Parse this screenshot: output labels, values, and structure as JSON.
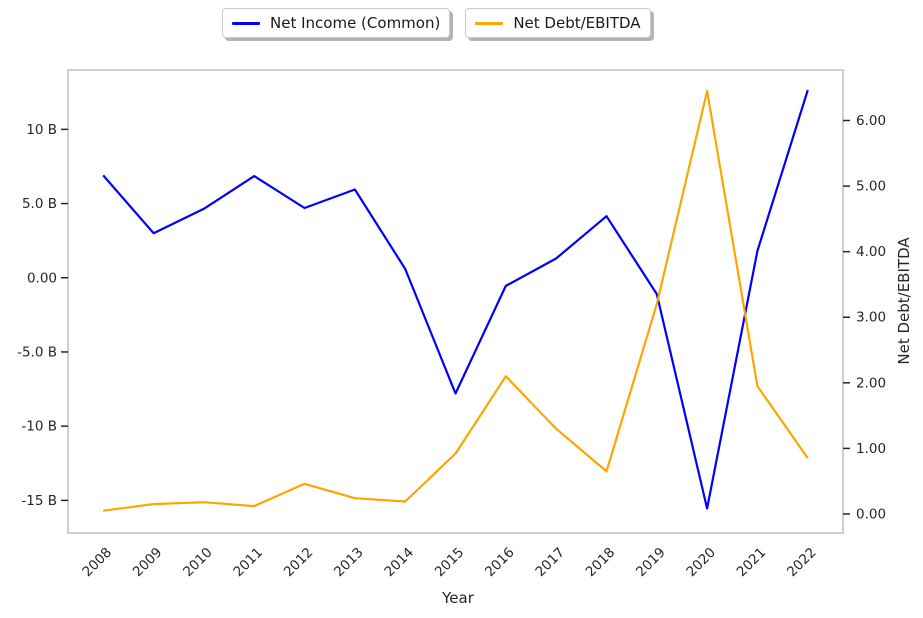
{
  "chart_data": {
    "type": "line",
    "title": "",
    "xlabel": "Year",
    "ylabel_right": "Net Debt/EBITDA",
    "x": [
      2008,
      2009,
      2010,
      2011,
      2012,
      2013,
      2014,
      2015,
      2016,
      2017,
      2018,
      2019,
      2020,
      2021,
      2022
    ],
    "series": [
      {
        "name": "Net Income (Common)",
        "axis": "left",
        "color": "#0000ff",
        "values": [
          6.9,
          3.0,
          4.65,
          6.85,
          4.7,
          5.95,
          0.6,
          -7.8,
          -0.55,
          1.3,
          4.15,
          -1.1,
          -15.55,
          1.8,
          12.65
        ]
      },
      {
        "name": "Net Debt/EBITDA",
        "axis": "right",
        "color": "#ffa500",
        "values": [
          0.05,
          0.15,
          0.18,
          0.12,
          0.46,
          0.24,
          0.19,
          0.92,
          2.1,
          1.3,
          0.65,
          3.2,
          6.45,
          1.95,
          0.85
        ]
      }
    ],
    "left_axis_ticks": [
      {
        "value": 10,
        "label": "10 B"
      },
      {
        "value": 5,
        "label": "5.0 B"
      },
      {
        "value": 0,
        "label": "0.00"
      },
      {
        "value": -5,
        "label": "-5.0 B"
      },
      {
        "value": -10,
        "label": "-10 B"
      },
      {
        "value": -15,
        "label": "-15 B"
      }
    ],
    "right_axis_ticks": [
      {
        "value": 6,
        "label": "6.00"
      },
      {
        "value": 5,
        "label": "5.00"
      },
      {
        "value": 4,
        "label": "4.00"
      },
      {
        "value": 3,
        "label": "3.00"
      },
      {
        "value": 2,
        "label": "2.00"
      },
      {
        "value": 1,
        "label": "1.00"
      },
      {
        "value": 0,
        "label": "0.00"
      }
    ],
    "xlim": [
      2007.3,
      2022.7
    ],
    "ylim_left": [
      -17.2,
      14.0
    ],
    "ylim_right": [
      -0.29,
      6.77
    ],
    "grid": false,
    "legend_position": "top-center",
    "spine_color": "#cfcfcf",
    "text_color": "#262626"
  }
}
